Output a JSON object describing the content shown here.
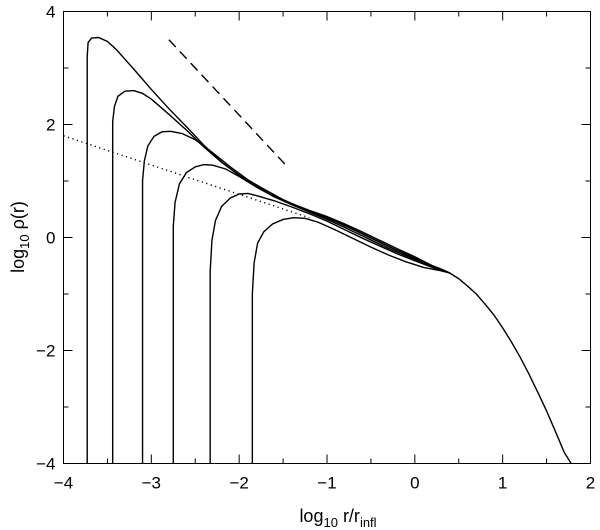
{
  "chart_data": {
    "type": "line",
    "title": "",
    "xlabel": {
      "base": "log",
      "sub": "10",
      "main": " r/r",
      "msub": "infl"
    },
    "ylabel": {
      "base": "log",
      "sub": "10",
      "main": " ρ(r)"
    },
    "xlim": [
      -4,
      2
    ],
    "ylim": [
      -4,
      4
    ],
    "xticks": [
      -4,
      -3,
      -2,
      -1,
      0,
      1,
      2
    ],
    "xtick_labels": [
      "−4",
      "−3",
      "−2",
      "−1",
      "0",
      "1",
      "2"
    ],
    "yticks": [
      -4,
      -2,
      0,
      2,
      4
    ],
    "ytick_labels": [
      "−4",
      "−2",
      "0",
      "2",
      "4"
    ],
    "grid": false,
    "series": [
      {
        "style": "solid",
        "points": [
          [
            -3.73,
            -4.0
          ],
          [
            -3.73,
            3.2
          ],
          [
            -3.72,
            3.45
          ],
          [
            -3.68,
            3.53
          ],
          [
            -3.6,
            3.54
          ],
          [
            -3.5,
            3.47
          ],
          [
            -3.4,
            3.33
          ],
          [
            -3.2,
            2.98
          ],
          [
            -3.0,
            2.62
          ],
          [
            -2.8,
            2.28
          ],
          [
            -2.6,
            1.96
          ],
          [
            -2.4,
            1.63
          ],
          [
            -2.2,
            1.34
          ],
          [
            -2.0,
            1.1
          ],
          [
            -1.8,
            0.9
          ],
          [
            -1.6,
            0.73
          ],
          [
            -1.4,
            0.6
          ],
          [
            -1.2,
            0.48
          ],
          [
            -1.0,
            0.37
          ],
          [
            -0.8,
            0.24
          ],
          [
            -0.6,
            0.1
          ],
          [
            -0.4,
            -0.05
          ],
          [
            -0.2,
            -0.2
          ],
          [
            0.0,
            -0.34
          ],
          [
            0.2,
            -0.5
          ],
          [
            0.3,
            -0.56
          ],
          [
            0.4,
            -0.63
          ],
          [
            0.5,
            -0.73
          ],
          [
            0.6,
            -0.86
          ],
          [
            0.7,
            -1.0
          ],
          [
            0.8,
            -1.18
          ],
          [
            0.9,
            -1.37
          ],
          [
            1.0,
            -1.6
          ],
          [
            1.1,
            -1.85
          ],
          [
            1.2,
            -2.12
          ],
          [
            1.3,
            -2.42
          ],
          [
            1.4,
            -2.74
          ],
          [
            1.5,
            -3.07
          ],
          [
            1.6,
            -3.43
          ],
          [
            1.7,
            -3.8
          ],
          [
            1.78,
            -4.0
          ]
        ]
      },
      {
        "style": "solid",
        "points": [
          [
            -3.44,
            -4.0
          ],
          [
            -3.44,
            2.05
          ],
          [
            -3.42,
            2.32
          ],
          [
            -3.38,
            2.5
          ],
          [
            -3.3,
            2.59
          ],
          [
            -3.2,
            2.6
          ],
          [
            -3.1,
            2.55
          ],
          [
            -3.0,
            2.45
          ],
          [
            -2.8,
            2.18
          ],
          [
            -2.6,
            1.9
          ],
          [
            -2.4,
            1.6
          ],
          [
            -2.2,
            1.33
          ],
          [
            -2.0,
            1.1
          ],
          [
            -1.8,
            0.9
          ],
          [
            -1.6,
            0.73
          ],
          [
            -1.4,
            0.6
          ],
          [
            -1.2,
            0.47
          ],
          [
            -1.0,
            0.35
          ],
          [
            -0.8,
            0.22
          ],
          [
            -0.6,
            0.07
          ],
          [
            -0.4,
            -0.08
          ],
          [
            -0.2,
            -0.23
          ],
          [
            0.0,
            -0.36
          ],
          [
            0.2,
            -0.5
          ],
          [
            0.3,
            -0.56
          ],
          [
            0.4,
            -0.63
          ]
        ]
      },
      {
        "style": "solid",
        "points": [
          [
            -3.1,
            -4.0
          ],
          [
            -3.1,
            1.0
          ],
          [
            -3.08,
            1.35
          ],
          [
            -3.04,
            1.62
          ],
          [
            -2.97,
            1.79
          ],
          [
            -2.88,
            1.87
          ],
          [
            -2.78,
            1.88
          ],
          [
            -2.65,
            1.84
          ],
          [
            -2.5,
            1.73
          ],
          [
            -2.3,
            1.5
          ],
          [
            -2.1,
            1.25
          ],
          [
            -1.9,
            1.02
          ],
          [
            -1.7,
            0.84
          ],
          [
            -1.5,
            0.67
          ],
          [
            -1.3,
            0.53
          ],
          [
            -1.1,
            0.4
          ],
          [
            -0.9,
            0.28
          ],
          [
            -0.7,
            0.14
          ],
          [
            -0.5,
            -0.01
          ],
          [
            -0.3,
            -0.16
          ],
          [
            -0.1,
            -0.3
          ],
          [
            0.1,
            -0.44
          ],
          [
            0.3,
            -0.56
          ],
          [
            0.4,
            -0.63
          ]
        ]
      },
      {
        "style": "solid",
        "points": [
          [
            -2.75,
            -4.0
          ],
          [
            -2.75,
            0.2
          ],
          [
            -2.73,
            0.62
          ],
          [
            -2.68,
            0.95
          ],
          [
            -2.6,
            1.15
          ],
          [
            -2.5,
            1.25
          ],
          [
            -2.4,
            1.29
          ],
          [
            -2.3,
            1.28
          ],
          [
            -2.15,
            1.21
          ],
          [
            -2.0,
            1.08
          ],
          [
            -1.8,
            0.89
          ],
          [
            -1.6,
            0.72
          ],
          [
            -1.4,
            0.58
          ],
          [
            -1.2,
            0.45
          ],
          [
            -1.0,
            0.32
          ],
          [
            -0.8,
            0.18
          ],
          [
            -0.6,
            0.03
          ],
          [
            -0.4,
            -0.12
          ],
          [
            -0.2,
            -0.26
          ],
          [
            0.0,
            -0.39
          ],
          [
            0.2,
            -0.52
          ],
          [
            0.4,
            -0.63
          ]
        ]
      },
      {
        "style": "solid",
        "points": [
          [
            -2.33,
            -4.0
          ],
          [
            -2.33,
            -0.6
          ],
          [
            -2.31,
            -0.05
          ],
          [
            -2.27,
            0.3
          ],
          [
            -2.2,
            0.55
          ],
          [
            -2.1,
            0.7
          ],
          [
            -2.0,
            0.77
          ],
          [
            -1.9,
            0.78
          ],
          [
            -1.8,
            0.74
          ],
          [
            -1.6,
            0.65
          ],
          [
            -1.4,
            0.54
          ],
          [
            -1.2,
            0.42
          ],
          [
            -1.0,
            0.29
          ],
          [
            -0.8,
            0.14
          ],
          [
            -0.6,
            -0.01
          ],
          [
            -0.4,
            -0.15
          ],
          [
            -0.2,
            -0.29
          ],
          [
            0.0,
            -0.41
          ],
          [
            0.2,
            -0.53
          ],
          [
            0.4,
            -0.63
          ]
        ]
      },
      {
        "style": "solid",
        "points": [
          [
            -1.85,
            -4.0
          ],
          [
            -1.85,
            -1.0
          ],
          [
            -1.83,
            -0.45
          ],
          [
            -1.79,
            -0.1
          ],
          [
            -1.72,
            0.1
          ],
          [
            -1.62,
            0.24
          ],
          [
            -1.5,
            0.32
          ],
          [
            -1.38,
            0.35
          ],
          [
            -1.25,
            0.34
          ],
          [
            -1.1,
            0.27
          ],
          [
            -0.9,
            0.13
          ],
          [
            -0.7,
            -0.02
          ],
          [
            -0.5,
            -0.17
          ],
          [
            -0.3,
            -0.31
          ],
          [
            -0.1,
            -0.43
          ],
          [
            0.1,
            -0.53
          ],
          [
            0.3,
            -0.59
          ],
          [
            0.4,
            -0.63
          ]
        ]
      },
      {
        "style": "dashed",
        "points": [
          [
            -2.8,
            3.5
          ],
          [
            -1.48,
            1.3
          ]
        ]
      },
      {
        "style": "dotted",
        "points": [
          [
            -4.0,
            1.8
          ],
          [
            -1.2,
            0.35
          ]
        ]
      }
    ]
  }
}
